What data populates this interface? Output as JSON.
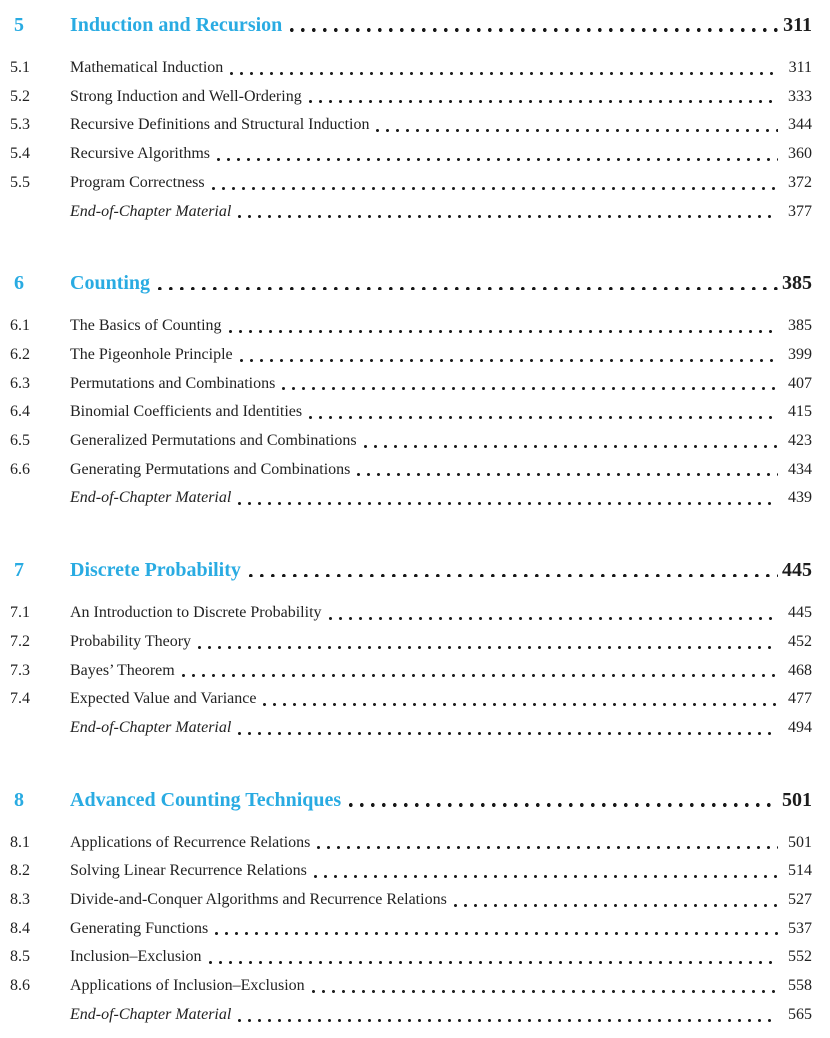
{
  "page": {
    "accent_color": "#29abe2",
    "text_color": "#222222",
    "background_color": "#ffffff"
  },
  "toc": {
    "chapters": [
      {
        "number": "5",
        "title": "Induction and Recursion",
        "page": "311",
        "sections": [
          {
            "number": "5.1",
            "title": "Mathematical Induction",
            "page": "311",
            "italic": false
          },
          {
            "number": "5.2",
            "title": "Strong Induction and Well-Ordering",
            "page": "333",
            "italic": false
          },
          {
            "number": "5.3",
            "title": "Recursive Definitions and Structural Induction",
            "page": "344",
            "italic": false
          },
          {
            "number": "5.4",
            "title": "Recursive Algorithms",
            "page": "360",
            "italic": false
          },
          {
            "number": "5.5",
            "title": "Program Correctness",
            "page": "372",
            "italic": false
          },
          {
            "number": "",
            "title": "End-of-Chapter Material",
            "page": "377",
            "italic": true
          }
        ]
      },
      {
        "number": "6",
        "title": "Counting",
        "page": "385",
        "sections": [
          {
            "number": "6.1",
            "title": "The Basics of Counting",
            "page": "385",
            "italic": false
          },
          {
            "number": "6.2",
            "title": "The Pigeonhole Principle",
            "page": "399",
            "italic": false
          },
          {
            "number": "6.3",
            "title": "Permutations and Combinations",
            "page": "407",
            "italic": false
          },
          {
            "number": "6.4",
            "title": "Binomial Coefficients and Identities",
            "page": "415",
            "italic": false
          },
          {
            "number": "6.5",
            "title": "Generalized Permutations and Combinations",
            "page": "423",
            "italic": false
          },
          {
            "number": "6.6",
            "title": "Generating Permutations and Combinations",
            "page": "434",
            "italic": false
          },
          {
            "number": "",
            "title": "End-of-Chapter Material",
            "page": "439",
            "italic": true
          }
        ]
      },
      {
        "number": "7",
        "title": "Discrete Probability",
        "page": "445",
        "sections": [
          {
            "number": "7.1",
            "title": "An Introduction to Discrete Probability",
            "page": "445",
            "italic": false
          },
          {
            "number": "7.2",
            "title": "Probability Theory",
            "page": "452",
            "italic": false
          },
          {
            "number": "7.3",
            "title": "Bayes’ Theorem",
            "page": "468",
            "italic": false
          },
          {
            "number": "7.4",
            "title": "Expected Value and Variance",
            "page": "477",
            "italic": false
          },
          {
            "number": "",
            "title": "End-of-Chapter Material",
            "page": "494",
            "italic": true
          }
        ]
      },
      {
        "number": "8",
        "title": "Advanced Counting Techniques",
        "page": "501",
        "sections": [
          {
            "number": "8.1",
            "title": "Applications of Recurrence Relations",
            "page": "501",
            "italic": false
          },
          {
            "number": "8.2",
            "title": "Solving Linear Recurrence Relations",
            "page": "514",
            "italic": false
          },
          {
            "number": "8.3",
            "title": "Divide-and-Conquer Algorithms and Recurrence Relations",
            "page": "527",
            "italic": false
          },
          {
            "number": "8.4",
            "title": "Generating Functions",
            "page": "537",
            "italic": false
          },
          {
            "number": "8.5",
            "title": "Inclusion–Exclusion",
            "page": "552",
            "italic": false
          },
          {
            "number": "8.6",
            "title": "Applications of Inclusion–Exclusion",
            "page": "558",
            "italic": false
          },
          {
            "number": "",
            "title": "End-of-Chapter Material",
            "page": "565",
            "italic": true
          }
        ]
      }
    ]
  }
}
